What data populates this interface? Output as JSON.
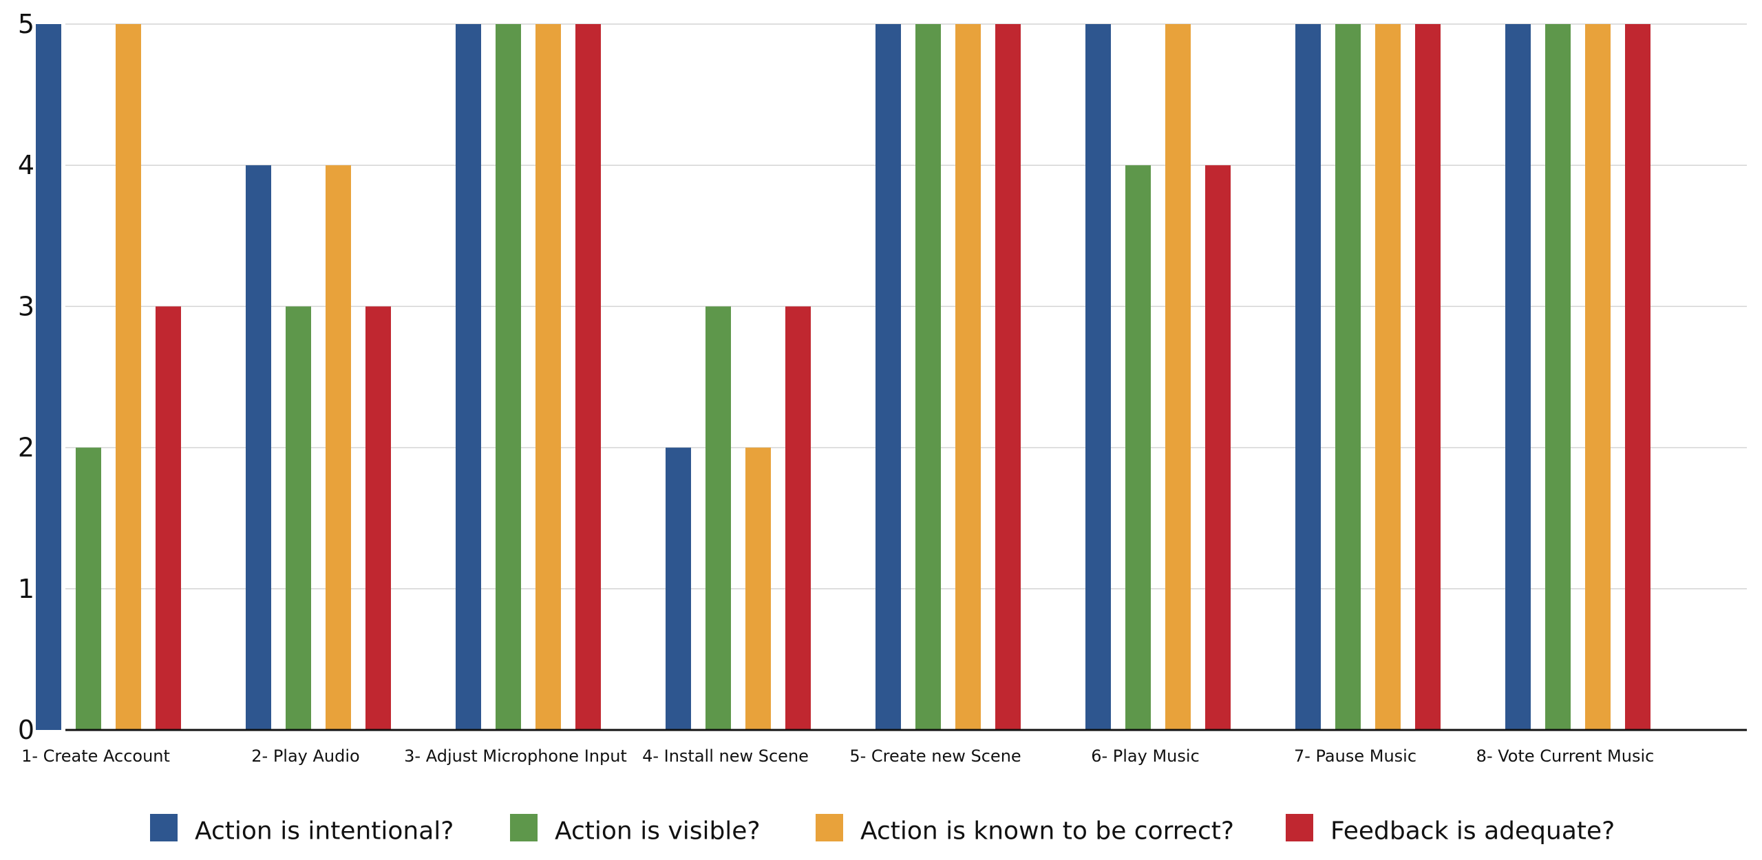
{
  "chart_data": {
    "type": "bar",
    "title": "",
    "xlabel": "",
    "ylabel": "",
    "ylim": [
      0,
      5
    ],
    "yticks": [
      0,
      1,
      2,
      3,
      4,
      5
    ],
    "grid": true,
    "legend_position": "bottom",
    "categories": [
      "1- Create Account",
      "2- Play Audio",
      "3- Adjust Microphone Input",
      "4- Install new Scene",
      "5- Create new Scene",
      "6- Play Music",
      "7- Pause Music",
      "8- Vote Current Music"
    ],
    "series": [
      {
        "name": "Action is intentional?",
        "color": "#2e568f",
        "values": [
          5,
          4,
          5,
          2,
          5,
          5,
          5,
          5
        ]
      },
      {
        "name": "Action is visible?",
        "color": "#5e974b",
        "values": [
          2,
          3,
          5,
          3,
          5,
          4,
          5,
          5
        ]
      },
      {
        "name": "Action is known to be correct?",
        "color": "#e8a23b",
        "values": [
          5,
          4,
          5,
          2,
          5,
          5,
          5,
          5
        ]
      },
      {
        "name": "Feedback is adequate?",
        "color": "#c02730",
        "values": [
          3,
          3,
          5,
          3,
          5,
          4,
          5,
          5
        ]
      }
    ]
  }
}
